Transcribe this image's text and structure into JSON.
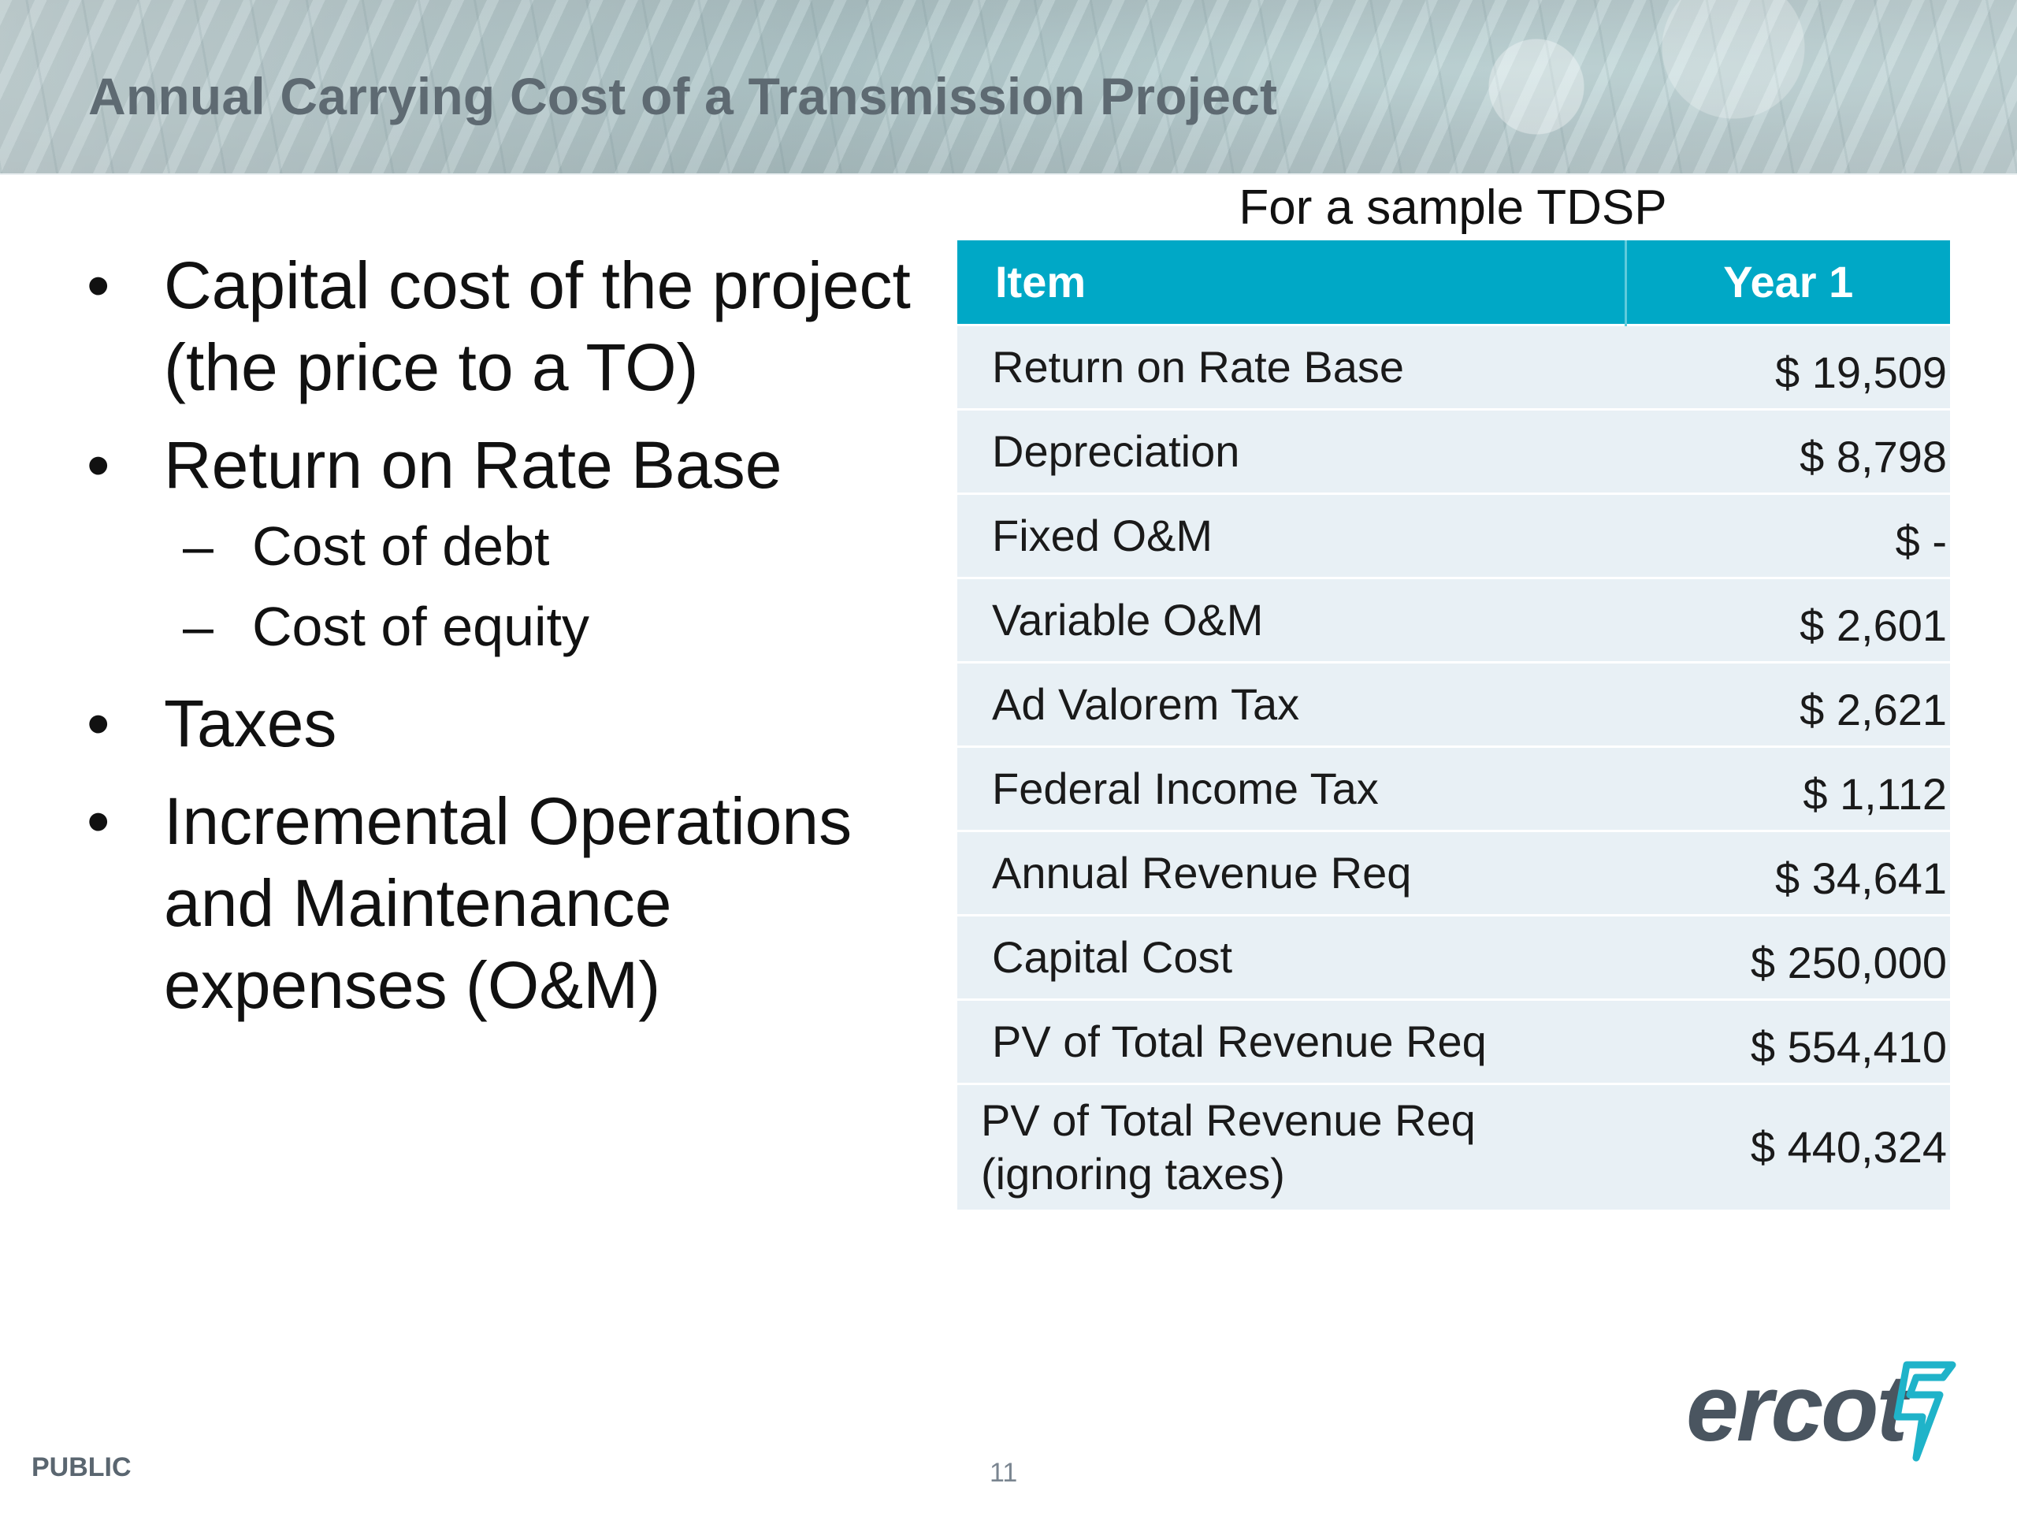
{
  "slide": {
    "title": "Annual Carrying Cost of a Transmission Project"
  },
  "bullets": [
    {
      "text": "Capital cost of the project (the price to a TO)",
      "subs": []
    },
    {
      "text": "Return on Rate Base",
      "subs": [
        "Cost of debt",
        "Cost of equity"
      ]
    },
    {
      "text": "Taxes",
      "subs": []
    },
    {
      "text": "Incremental Operations and Maintenance expenses (O&M)",
      "subs": []
    }
  ],
  "bullet_symbol": "•",
  "sub_symbol": "–",
  "table": {
    "caption": "For a sample TDSP",
    "headers": {
      "item": "Item",
      "year": "Year 1"
    },
    "rows": [
      {
        "item": "Return on Rate Base",
        "value": "$ 19,509"
      },
      {
        "item": "Depreciation",
        "value": "$ 8,798"
      },
      {
        "item": "Fixed O&M",
        "value": "$ -"
      },
      {
        "item": "Variable O&M",
        "value": "$ 2,601"
      },
      {
        "item": "Ad Valorem Tax",
        "value": "$ 2,621"
      },
      {
        "item": "Federal Income Tax",
        "value": "$ 1,112"
      },
      {
        "item": "Annual Revenue Req",
        "value": "$ 34,641"
      },
      {
        "item": "Capital Cost",
        "value": "$ 250,000"
      },
      {
        "item": "PV of Total Revenue Req",
        "value": "$ 554,410"
      },
      {
        "item": "PV of Total Revenue Req (ignoring taxes)",
        "value": "$ 440,324"
      }
    ]
  },
  "footer": {
    "label": "PUBLIC",
    "page_number": "11",
    "logo_text": "ercot"
  },
  "colors": {
    "header_accent": "#00a8c6",
    "table_body": "#e8f0f5",
    "title_gray": "#5e6a72",
    "logo_gray": "#4a5560",
    "logo_cyan": "#1fb3c9"
  }
}
